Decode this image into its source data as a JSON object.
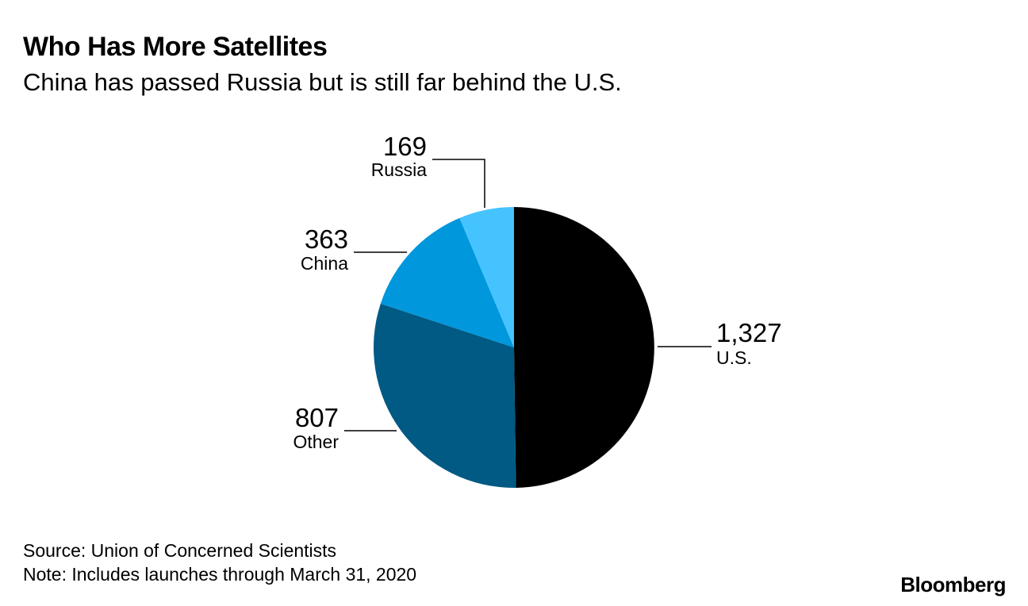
{
  "header": {
    "title": "Who Has More Satellites",
    "subtitle": "China has passed Russia but is still far behind the U.S."
  },
  "chart_data": {
    "type": "pie",
    "title": "Who Has More Satellites",
    "subtitle": "China has passed Russia but is still far behind the U.S.",
    "start_angle": "12 o'clock, clockwise",
    "slices": [
      {
        "label": "U.S.",
        "value": 1327,
        "value_label": "1,327",
        "color": "#000000"
      },
      {
        "label": "Other",
        "value": 807,
        "value_label": "807",
        "color": "#005a84"
      },
      {
        "label": "China",
        "value": 363,
        "value_label": "363",
        "color": "#0097dc"
      },
      {
        "label": "Russia",
        "value": 169,
        "value_label": "169",
        "color": "#45c3fe"
      }
    ]
  },
  "footer": {
    "source": "Source: Union of Concerned Scientists",
    "note": "Note: Includes launches through March 31, 2020",
    "brand": "Bloomberg"
  }
}
